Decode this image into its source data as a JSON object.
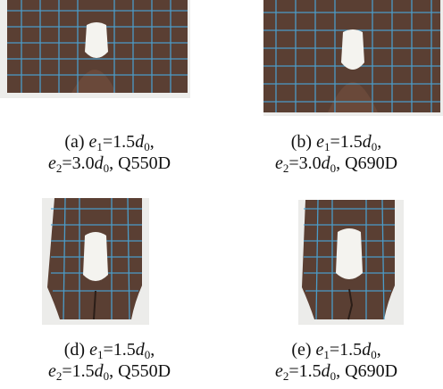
{
  "figure": {
    "panels": [
      {
        "id": "a",
        "label": "(a)",
        "e1_sym": "e",
        "e1_sub": "1",
        "e1_val": "=1.5",
        "d_sym": "d",
        "d_sub": "0",
        "e2_sym": "e",
        "e2_sub": "2",
        "e2_val": "=3.0",
        "steel": "Q550D"
      },
      {
        "id": "b",
        "label": "(b)",
        "e1_sym": "e",
        "e1_sub": "1",
        "e1_val": "=1.5",
        "d_sym": "d",
        "d_sub": "0",
        "e2_sym": "e",
        "e2_sub": "2",
        "e2_val": "=3.0",
        "steel": "Q690D"
      },
      {
        "id": "d",
        "label": "(d)",
        "e1_sym": "e",
        "e1_sub": "1",
        "e1_val": "=1.5",
        "d_sym": "d",
        "d_sub": "0",
        "e2_sym": "e",
        "e2_sub": "2",
        "e2_val": "=1.5",
        "steel": "Q550D"
      },
      {
        "id": "e",
        "label": "(e)",
        "e1_sym": "e",
        "e1_sub": "1",
        "e1_val": "=1.5",
        "d_sym": "d",
        "d_sub": "0",
        "e2_sym": "e",
        "e2_sub": "2",
        "e2_val": "=1.5",
        "steel": "Q690D"
      }
    ],
    "colors": {
      "plate": "#5a3f33",
      "grid": "#4aa6d8",
      "background": "#f2f2f0"
    }
  }
}
